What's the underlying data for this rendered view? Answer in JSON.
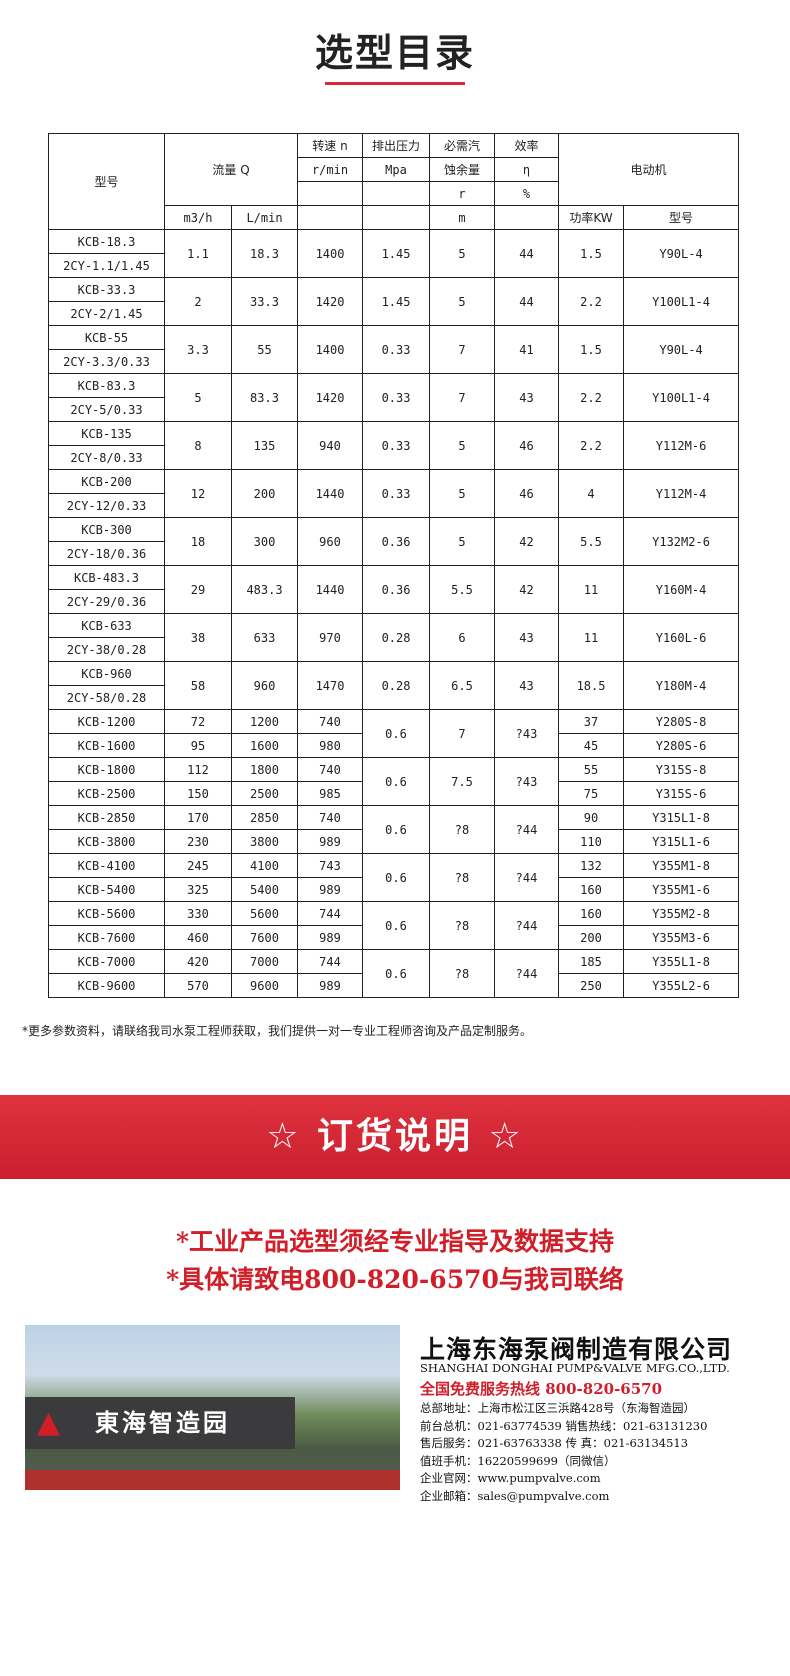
{
  "title": "选型目录",
  "header": {
    "model": "型号",
    "flow": "流量 Q",
    "speed": "转速 n",
    "speed_unit": "r/min",
    "pressure": "排出压力",
    "pressure_unit": "Mpa",
    "npsh1": "必需汽",
    "npsh2": "蚀余量",
    "npsh_r": "r",
    "npsh_unit": "m",
    "eff": "效率",
    "eff_sym": "η",
    "eff_unit": "%",
    "motor": "电动机",
    "flow_m3h": "m3/h",
    "flow_lmin": "L/min",
    "power": "功率KW",
    "motor_model": "型号"
  },
  "rows_a": [
    [
      "KCB-18.3",
      "2CY-1.1/1.45",
      "1.1",
      "18.3",
      "1400",
      "1.45",
      "5",
      "44",
      "1.5",
      "Y90L-4"
    ],
    [
      "KCB-33.3",
      "2CY-2/1.45",
      "2",
      "33.3",
      "1420",
      "1.45",
      "5",
      "44",
      "2.2",
      "Y100L1-4"
    ],
    [
      "KCB-55",
      "2CY-3.3/0.33",
      "3.3",
      "55",
      "1400",
      "0.33",
      "7",
      "41",
      "1.5",
      "Y90L-4"
    ],
    [
      "KCB-83.3",
      "2CY-5/0.33",
      "5",
      "83.3",
      "1420",
      "0.33",
      "7",
      "43",
      "2.2",
      "Y100L1-4"
    ],
    [
      "KCB-135",
      "2CY-8/0.33",
      "8",
      "135",
      "940",
      "0.33",
      "5",
      "46",
      "2.2",
      "Y112M-6"
    ],
    [
      "KCB-200",
      "2CY-12/0.33",
      "12",
      "200",
      "1440",
      "0.33",
      "5",
      "46",
      "4",
      "Y112M-4"
    ],
    [
      "KCB-300",
      "2CY-18/0.36",
      "18",
      "300",
      "960",
      "0.36",
      "5",
      "42",
      "5.5",
      "Y132M2-6"
    ],
    [
      "KCB-483.3",
      "2CY-29/0.36",
      "29",
      "483.3",
      "1440",
      "0.36",
      "5.5",
      "42",
      "11",
      "Y160M-4"
    ],
    [
      "KCB-633",
      "2CY-38/0.28",
      "38",
      "633",
      "970",
      "0.28",
      "6",
      "43",
      "11",
      "Y160L-6"
    ],
    [
      "KCB-960",
      "2CY-58/0.28",
      "58",
      "960",
      "1470",
      "0.28",
      "6.5",
      "43",
      "18.5",
      "Y180M-4"
    ]
  ],
  "rows_b": [
    {
      "p": "0.6",
      "npsh": "7",
      "eff": "?43",
      "r": [
        [
          "KCB-1200",
          "72",
          "1200",
          "740",
          "37",
          "Y280S-8"
        ],
        [
          "KCB-1600",
          "95",
          "1600",
          "980",
          "45",
          "Y280S-6"
        ]
      ]
    },
    {
      "p": "0.6",
      "npsh": "7.5",
      "eff": "?43",
      "r": [
        [
          "KCB-1800",
          "112",
          "1800",
          "740",
          "55",
          "Y315S-8"
        ],
        [
          "KCB-2500",
          "150",
          "2500",
          "985",
          "75",
          "Y315S-6"
        ]
      ]
    },
    {
      "p": "0.6",
      "npsh": "?8",
      "eff": "?44",
      "r": [
        [
          "KCB-2850",
          "170",
          "2850",
          "740",
          "90",
          "Y315L1-8"
        ],
        [
          "KCB-3800",
          "230",
          "3800",
          "989",
          "110",
          "Y315L1-6"
        ]
      ]
    },
    {
      "p": "0.6",
      "npsh": "?8",
      "eff": "?44",
      "r": [
        [
          "KCB-4100",
          "245",
          "4100",
          "743",
          "132",
          "Y355M1-8"
        ],
        [
          "KCB-5400",
          "325",
          "5400",
          "989",
          "160",
          "Y355M1-6"
        ]
      ]
    },
    {
      "p": "0.6",
      "npsh": "?8",
      "eff": "?44",
      "r": [
        [
          "KCB-5600",
          "330",
          "5600",
          "744",
          "160",
          "Y355M2-8"
        ],
        [
          "KCB-7600",
          "460",
          "7600",
          "989",
          "200",
          "Y355M3-6"
        ]
      ]
    },
    {
      "p": "0.6",
      "npsh": "?8",
      "eff": "?44",
      "r": [
        [
          "KCB-7000",
          "420",
          "7000",
          "744",
          "185",
          "Y355L1-8"
        ],
        [
          "KCB-9600",
          "570",
          "9600",
          "989",
          "250",
          "Y355L2-6"
        ]
      ]
    }
  ],
  "note": "*更多参数资料，请联络我司水泵工程师获取，我们提供一对一专业工程师咨询及产品定制服务。",
  "order_title": "☆ 订货说明 ☆",
  "slogan1": "*工业产品选型须经专业指导及数据支持",
  "slogan2": "*具体请致电800-820-6570与我司联络",
  "photo_sign": "東海智造园",
  "company": {
    "name": "上海东海泵阀制造有限公司",
    "name_en": "SHANGHAI DONGHAI PUMP&VALVE MFG.CO.,LTD.",
    "hotline": "全国免费服务热线  800-820-6570",
    "info": [
      "总部地址：上海市松江区三浜路428号（东海智造园）",
      "前台总机：021-63774539  销售热线：021-63131230",
      "售后服务：021-63763338  传    真：021-63134513",
      "值班手机：16220599699（同微信）",
      "企业官网：www.pumpvalve.com",
      "企业邮箱：sales@pumpvalve.com"
    ]
  },
  "colors": {
    "accent": "#d11f2a"
  }
}
